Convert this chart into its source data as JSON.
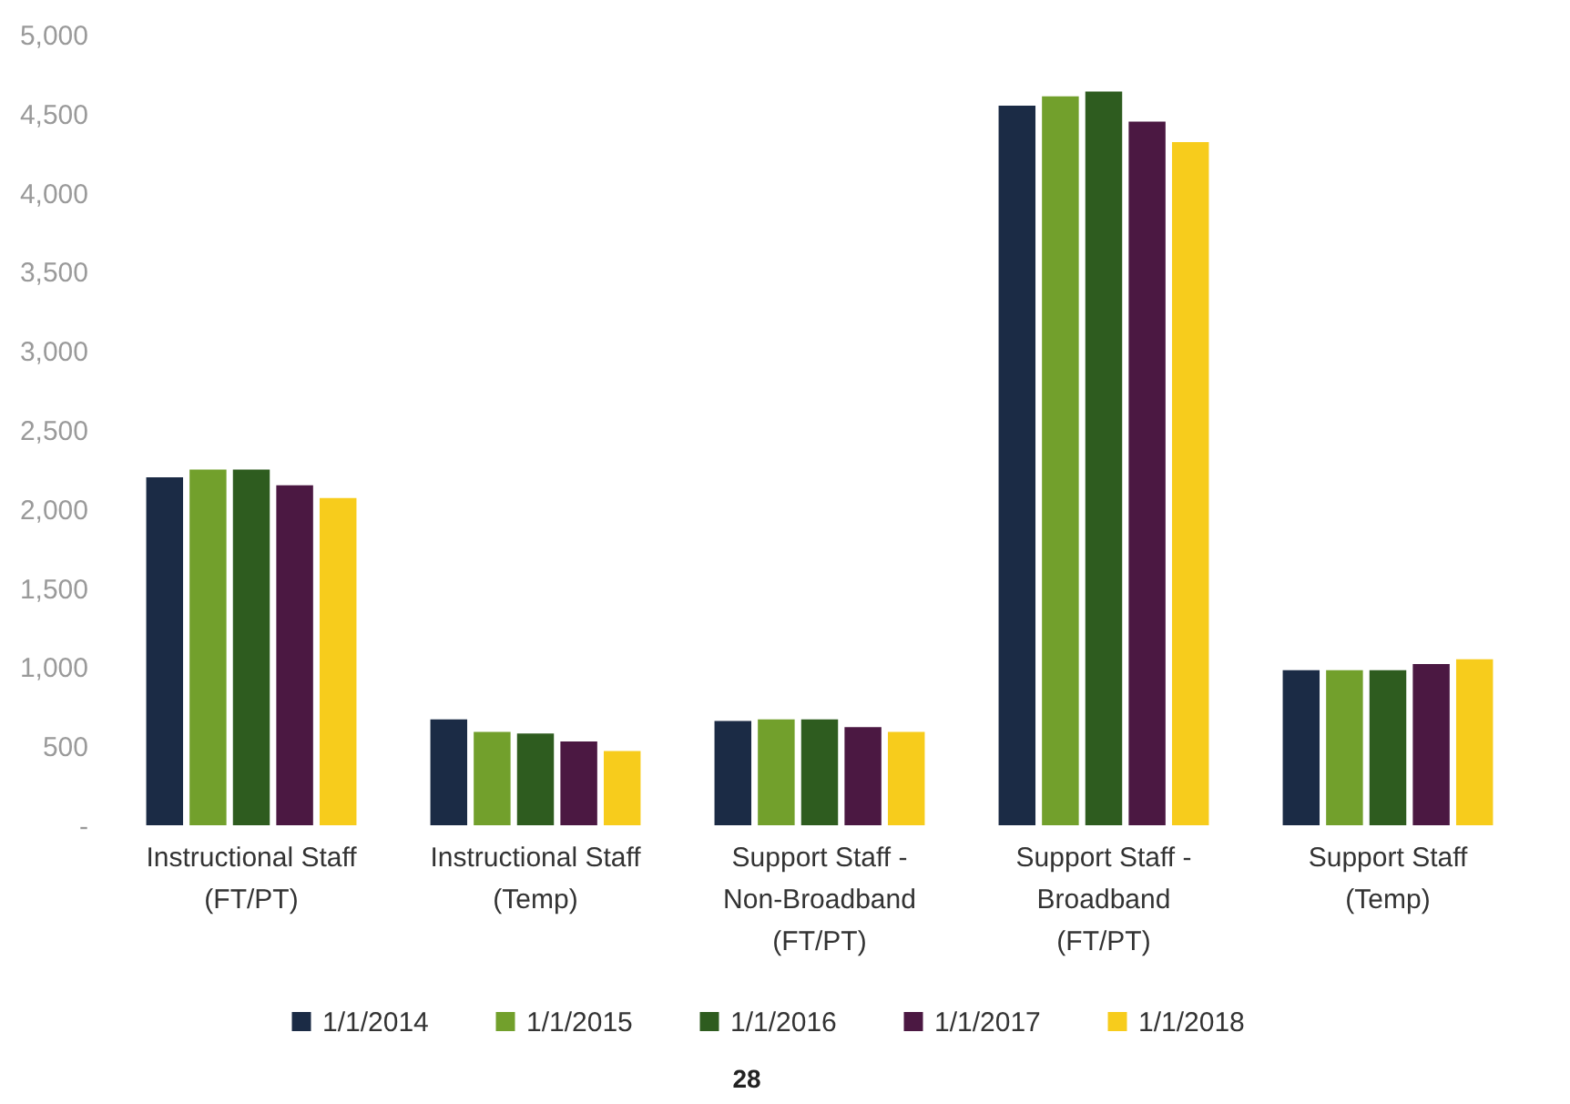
{
  "chart_data": {
    "type": "bar",
    "categories": [
      "Instructional Staff (FT/PT)",
      "Instructional Staff (Temp)",
      "Support Staff - Non-Broadband (FT/PT)",
      "Support Staff - Broadband (FT/PT)",
      "Support Staff (Temp)"
    ],
    "series": [
      {
        "name": "1/1/2014",
        "color": "#1b2b45",
        "values": [
          2200,
          670,
          660,
          4550,
          980
        ]
      },
      {
        "name": "1/1/2015",
        "color": "#72a02c",
        "values": [
          2250,
          590,
          670,
          4610,
          980
        ]
      },
      {
        "name": "1/1/2016",
        "color": "#2e5c1f",
        "values": [
          2250,
          580,
          670,
          4640,
          980
        ]
      },
      {
        "name": "1/1/2017",
        "color": "#4b1842",
        "values": [
          2150,
          530,
          620,
          4450,
          1020
        ]
      },
      {
        "name": "1/1/2018",
        "color": "#f7cc1c",
        "values": [
          2070,
          470,
          590,
          4320,
          1050
        ]
      }
    ],
    "ylim": [
      0,
      5000
    ],
    "yticks": [
      {
        "value": 0,
        "label": "-"
      },
      500,
      {
        "value": 1000,
        "label": "1,000"
      },
      {
        "value": 1500,
        "label": "1,500"
      },
      {
        "value": 2000,
        "label": "2,000"
      },
      {
        "value": 2500,
        "label": "2,500"
      },
      {
        "value": 3000,
        "label": "3,000"
      },
      {
        "value": 3500,
        "label": "3,500"
      },
      {
        "value": 4000,
        "label": "4,000"
      },
      {
        "value": 4500,
        "label": "4,500"
      },
      {
        "value": 5000,
        "label": "5,000"
      }
    ],
    "grid": false,
    "legend": "bottom",
    "annotations": [
      "28"
    ]
  }
}
